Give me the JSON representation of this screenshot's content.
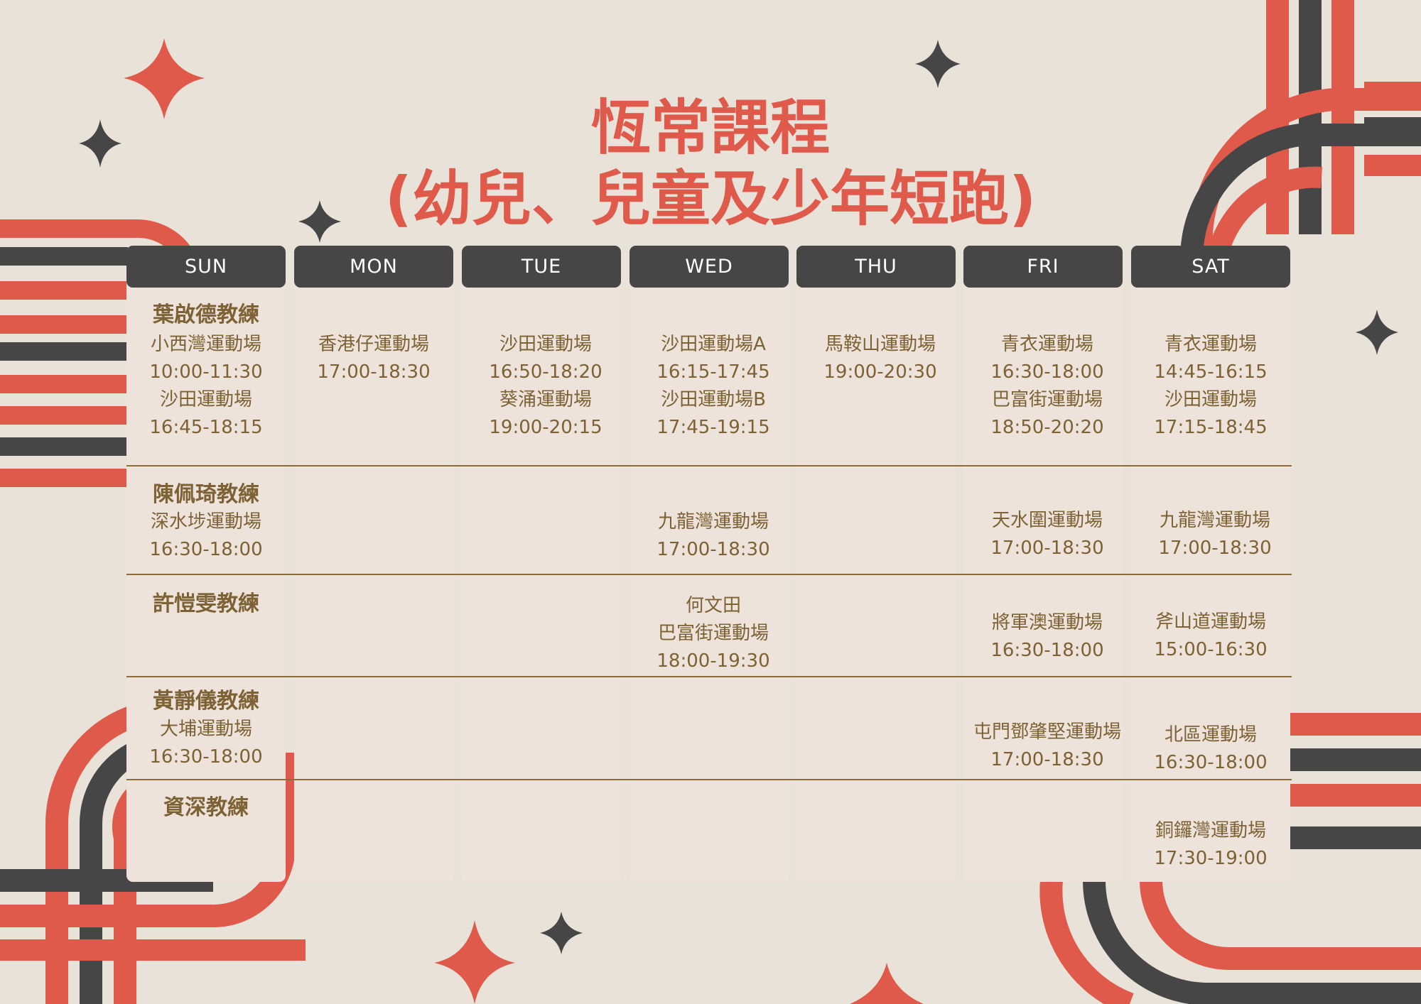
{
  "title": {
    "line1": "恆常課程",
    "line2": "(幼兒、兒童及少年短跑)"
  },
  "colors": {
    "accent": "#e05a4b",
    "dark": "#464646",
    "text": "#7c6234",
    "panel": "#ede3da",
    "background": "#e9e2d8"
  },
  "days": [
    "SUN",
    "MON",
    "TUE",
    "WED",
    "THU",
    "FRI",
    "SAT"
  ],
  "coaches": [
    {
      "name": "葉啟德教練",
      "sessions": {
        "SUN": [
          [
            "小西灣運動場",
            "10:00-11:30"
          ],
          [
            "沙田運動場",
            "16:45-18:15"
          ]
        ],
        "MON": [
          [
            "香港仔運動場",
            "17:00-18:30"
          ]
        ],
        "TUE": [
          [
            "沙田運動場",
            "16:50-18:20"
          ],
          [
            "葵涌運動場",
            "19:00-20:15"
          ]
        ],
        "WED": [
          [
            "沙田運動場A",
            "16:15-17:45"
          ],
          [
            "沙田運動場B",
            "17:45-19:15"
          ]
        ],
        "THU": [
          [
            "馬鞍山運動場",
            "19:00-20:30"
          ]
        ],
        "FRI": [
          [
            "青衣運動場",
            "16:30-18:00"
          ],
          [
            "巴富街運動場",
            "18:50-20:20"
          ]
        ],
        "SAT": [
          [
            "青衣運動場",
            "14:45-16:15"
          ],
          [
            "沙田運動場",
            "17:15-18:45"
          ]
        ]
      }
    },
    {
      "name": "陳佩琦教練",
      "sessions": {
        "SUN": [
          [
            "深水埗運動場",
            "16:30-18:00"
          ]
        ],
        "WED": [
          [
            "九龍灣運動場",
            "17:00-18:30"
          ]
        ],
        "FRI": [
          [
            "天水圍運動場",
            "17:00-18:30"
          ]
        ],
        "SAT": [
          [
            "九龍灣運動場",
            "17:00-18:30"
          ]
        ]
      }
    },
    {
      "name": "許愷雯教練",
      "sessions": {
        "WED": [
          [
            "何文田",
            "巴富街運動場",
            "18:00-19:30"
          ]
        ],
        "FRI": [
          [
            "將軍澳運動場",
            "16:30-18:00"
          ]
        ],
        "SAT": [
          [
            "斧山道運動場",
            "15:00-16:30"
          ]
        ]
      }
    },
    {
      "name": "黃靜儀教練",
      "sessions": {
        "SUN": [
          [
            "大埔運動場",
            "16:30-18:00"
          ]
        ],
        "FRI": [
          [
            "屯門鄧肇堅運動場",
            "17:00-18:30"
          ]
        ],
        "SAT": [
          [
            "北區運動場",
            "16:30-18:00"
          ]
        ]
      }
    },
    {
      "name": "資深教練",
      "sessions": {
        "SAT": [
          [
            "銅鑼灣運動場",
            "17:30-19:00"
          ]
        ]
      }
    }
  ]
}
